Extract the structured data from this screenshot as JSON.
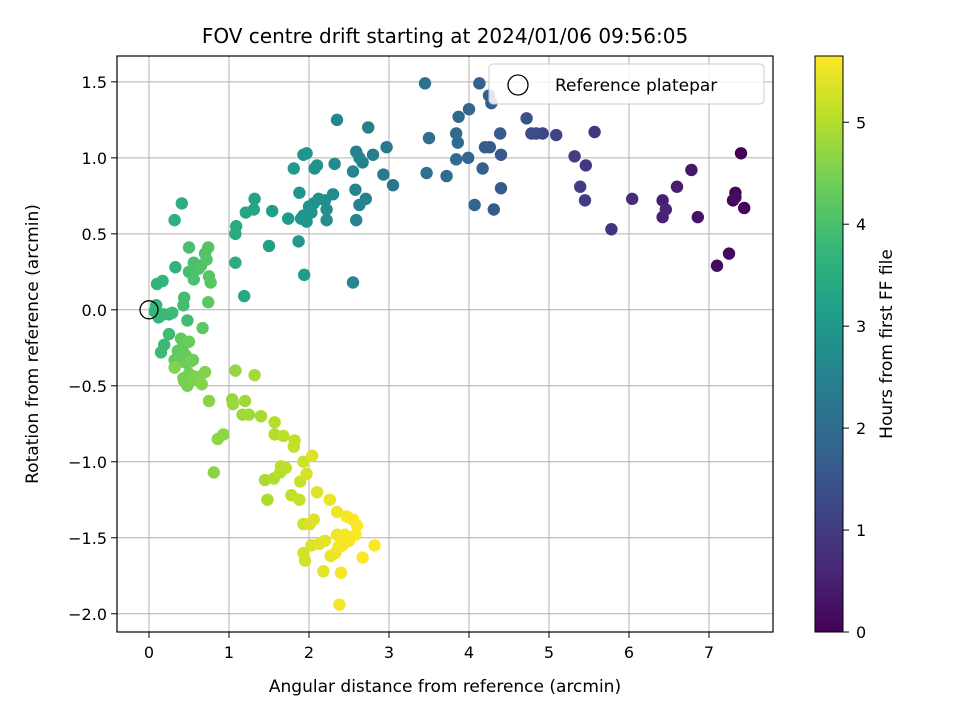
{
  "chart_data": {
    "type": "scatter",
    "title": "FOV centre drift starting at 2024/01/06 09:56:05",
    "xlabel": "Angular distance from reference (arcmin)",
    "ylabel": "Rotation from reference (arcmin)",
    "xlim": [
      -0.4,
      7.8
    ],
    "ylim": [
      -2.12,
      1.67
    ],
    "xticks": [
      "0",
      "1",
      "2",
      "3",
      "4",
      "5",
      "6",
      "7"
    ],
    "xtick_values": [
      0,
      1,
      2,
      3,
      4,
      5,
      6,
      7
    ],
    "yticks": [
      "1.5",
      "1.0",
      "0.5",
      "0.0",
      "−0.5",
      "−1.0",
      "−1.5",
      "−2.0"
    ],
    "ytick_values": [
      1.5,
      1.0,
      0.5,
      0.0,
      -0.5,
      -1.0,
      -1.5,
      -2.0
    ],
    "grid": true,
    "legend": {
      "placement": "top-right",
      "entries": [
        "Reference platepar"
      ]
    },
    "reference_point": {
      "x": 0,
      "y": 0
    },
    "colorbar": {
      "label": "Hours from first FF file",
      "range": [
        0,
        5.65
      ],
      "ticks": [
        "0",
        "1",
        "2",
        "3",
        "4",
        "5"
      ],
      "tick_values": [
        0,
        1,
        2,
        3,
        4,
        5
      ],
      "colormap": [
        "#440154",
        "#482878",
        "#3e4989",
        "#31688e",
        "#26828e",
        "#1f9e89",
        "#35b779",
        "#6ece58",
        "#b5de2b",
        "#fde725"
      ]
    },
    "points": [
      {
        "x": 7.4,
        "y": 1.03,
        "c": 0.02
      },
      {
        "x": 7.44,
        "y": 0.67,
        "c": 0.05
      },
      {
        "x": 7.33,
        "y": 0.77,
        "c": 0.08
      },
      {
        "x": 7.3,
        "y": 0.72,
        "c": 0.1
      },
      {
        "x": 7.25,
        "y": 0.37,
        "c": 0.13
      },
      {
        "x": 7.1,
        "y": 0.29,
        "c": 0.16
      },
      {
        "x": 7.33,
        "y": 0.74,
        "c": 0.2
      },
      {
        "x": 6.86,
        "y": 0.61,
        "c": 0.3
      },
      {
        "x": 6.78,
        "y": 0.92,
        "c": 0.35
      },
      {
        "x": 6.6,
        "y": 0.81,
        "c": 0.45
      },
      {
        "x": 6.42,
        "y": 0.72,
        "c": 0.5
      },
      {
        "x": 6.42,
        "y": 0.61,
        "c": 0.55
      },
      {
        "x": 6.46,
        "y": 0.66,
        "c": 0.58
      },
      {
        "x": 6.04,
        "y": 0.73,
        "c": 0.7
      },
      {
        "x": 5.78,
        "y": 0.53,
        "c": 0.85
      },
      {
        "x": 5.57,
        "y": 1.17,
        "c": 0.88
      },
      {
        "x": 5.46,
        "y": 0.95,
        "c": 0.95
      },
      {
        "x": 5.39,
        "y": 0.81,
        "c": 1.0
      },
      {
        "x": 5.45,
        "y": 0.72,
        "c": 1.02
      },
      {
        "x": 5.32,
        "y": 1.01,
        "c": 1.05
      },
      {
        "x": 5.09,
        "y": 1.15,
        "c": 1.15
      },
      {
        "x": 4.92,
        "y": 1.16,
        "c": 1.2
      },
      {
        "x": 4.84,
        "y": 1.16,
        "c": 1.25
      },
      {
        "x": 4.78,
        "y": 1.16,
        "c": 1.3
      },
      {
        "x": 4.72,
        "y": 1.26,
        "c": 1.4
      },
      {
        "x": 4.4,
        "y": 1.02,
        "c": 1.55
      },
      {
        "x": 4.4,
        "y": 0.8,
        "c": 1.6
      },
      {
        "x": 4.39,
        "y": 1.16,
        "c": 1.62
      },
      {
        "x": 4.31,
        "y": 0.66,
        "c": 1.65
      },
      {
        "x": 4.26,
        "y": 1.07,
        "c": 1.65
      },
      {
        "x": 4.2,
        "y": 1.07,
        "c": 1.68
      },
      {
        "x": 4.25,
        "y": 1.41,
        "c": 1.7
      },
      {
        "x": 4.28,
        "y": 1.36,
        "c": 1.72
      },
      {
        "x": 4.13,
        "y": 1.49,
        "c": 1.75
      },
      {
        "x": 4.17,
        "y": 0.93,
        "c": 1.75
      },
      {
        "x": 4.07,
        "y": 0.69,
        "c": 1.8
      },
      {
        "x": 4.0,
        "y": 1.32,
        "c": 1.85
      },
      {
        "x": 3.99,
        "y": 1.0,
        "c": 1.85
      },
      {
        "x": 3.87,
        "y": 1.27,
        "c": 1.9
      },
      {
        "x": 3.86,
        "y": 1.1,
        "c": 1.92
      },
      {
        "x": 3.84,
        "y": 1.16,
        "c": 1.95
      },
      {
        "x": 3.84,
        "y": 0.99,
        "c": 1.97
      },
      {
        "x": 3.72,
        "y": 0.88,
        "c": 2.0
      },
      {
        "x": 3.5,
        "y": 1.13,
        "c": 2.05
      },
      {
        "x": 3.47,
        "y": 0.9,
        "c": 2.1
      },
      {
        "x": 3.45,
        "y": 1.49,
        "c": 2.1
      },
      {
        "x": 3.05,
        "y": 0.82,
        "c": 2.2
      },
      {
        "x": 2.97,
        "y": 1.07,
        "c": 2.25
      },
      {
        "x": 2.93,
        "y": 0.89,
        "c": 2.3
      },
      {
        "x": 2.8,
        "y": 1.02,
        "c": 2.35
      },
      {
        "x": 2.74,
        "y": 1.2,
        "c": 2.4
      },
      {
        "x": 2.71,
        "y": 0.73,
        "c": 2.45
      },
      {
        "x": 2.67,
        "y": 0.97,
        "c": 2.45
      },
      {
        "x": 2.63,
        "y": 1.0,
        "c": 2.5
      },
      {
        "x": 2.63,
        "y": 0.69,
        "c": 2.5
      },
      {
        "x": 2.59,
        "y": 1.04,
        "c": 2.5
      },
      {
        "x": 2.58,
        "y": 0.79,
        "c": 2.55
      },
      {
        "x": 2.59,
        "y": 0.59,
        "c": 2.55
      },
      {
        "x": 2.55,
        "y": 0.91,
        "c": 2.6
      },
      {
        "x": 2.55,
        "y": 0.18,
        "c": 2.6
      },
      {
        "x": 2.35,
        "y": 1.25,
        "c": 2.65
      },
      {
        "x": 2.32,
        "y": 0.96,
        "c": 2.7
      },
      {
        "x": 2.3,
        "y": 0.76,
        "c": 2.7
      },
      {
        "x": 2.22,
        "y": 0.59,
        "c": 2.75
      },
      {
        "x": 2.22,
        "y": 0.66,
        "c": 2.78
      },
      {
        "x": 2.2,
        "y": 0.72,
        "c": 2.8
      },
      {
        "x": 2.12,
        "y": 0.73,
        "c": 2.82
      },
      {
        "x": 2.07,
        "y": 0.93,
        "c": 2.85
      },
      {
        "x": 2.1,
        "y": 0.95,
        "c": 2.87
      },
      {
        "x": 2.06,
        "y": 0.7,
        "c": 2.88
      },
      {
        "x": 2.03,
        "y": 0.64,
        "c": 2.9
      },
      {
        "x": 2.0,
        "y": 0.68,
        "c": 2.9
      },
      {
        "x": 1.93,
        "y": 1.02,
        "c": 2.92
      },
      {
        "x": 1.97,
        "y": 1.03,
        "c": 2.92
      },
      {
        "x": 1.97,
        "y": 0.58,
        "c": 2.95
      },
      {
        "x": 1.93,
        "y": 0.62,
        "c": 2.95
      },
      {
        "x": 1.88,
        "y": 0.77,
        "c": 2.97
      },
      {
        "x": 1.9,
        "y": 0.6,
        "c": 3.0
      },
      {
        "x": 1.87,
        "y": 0.45,
        "c": 3.0
      },
      {
        "x": 1.94,
        "y": 0.23,
        "c": 3.05
      },
      {
        "x": 1.81,
        "y": 0.93,
        "c": 3.05
      },
      {
        "x": 1.74,
        "y": 0.6,
        "c": 3.1
      },
      {
        "x": 1.54,
        "y": 0.65,
        "c": 3.15
      },
      {
        "x": 1.5,
        "y": 0.42,
        "c": 3.2
      },
      {
        "x": 1.32,
        "y": 0.73,
        "c": 3.3
      },
      {
        "x": 1.31,
        "y": 0.66,
        "c": 3.32
      },
      {
        "x": 1.21,
        "y": 0.64,
        "c": 3.35
      },
      {
        "x": 1.19,
        "y": 0.09,
        "c": 3.4
      },
      {
        "x": 1.09,
        "y": 0.55,
        "c": 3.45
      },
      {
        "x": 1.08,
        "y": 0.5,
        "c": 3.45
      },
      {
        "x": 1.08,
        "y": 0.31,
        "c": 3.5
      },
      {
        "x": 0.41,
        "y": 0.7,
        "c": 3.55
      },
      {
        "x": 0.32,
        "y": 0.59,
        "c": 3.6
      },
      {
        "x": 0.33,
        "y": 0.28,
        "c": 3.65
      },
      {
        "x": 0.17,
        "y": 0.19,
        "c": 3.7
      },
      {
        "x": 0.1,
        "y": 0.17,
        "c": 3.7
      },
      {
        "x": 0.09,
        "y": 0.03,
        "c": 3.72
      },
      {
        "x": 0.07,
        "y": -0.01,
        "c": 3.74
      },
      {
        "x": 0.12,
        "y": -0.05,
        "c": 3.76
      },
      {
        "x": 0.25,
        "y": -0.03,
        "c": 3.78
      },
      {
        "x": 0.18,
        "y": -0.03,
        "c": 3.8
      },
      {
        "x": 0.15,
        "y": -0.28,
        "c": 3.82
      },
      {
        "x": 0.19,
        "y": -0.23,
        "c": 3.84
      },
      {
        "x": 0.29,
        "y": -0.02,
        "c": 3.86
      },
      {
        "x": 0.25,
        "y": -0.16,
        "c": 3.88
      },
      {
        "x": 0.48,
        "y": -0.07,
        "c": 3.9
      },
      {
        "x": 0.43,
        "y": 0.03,
        "c": 3.92
      },
      {
        "x": 0.44,
        "y": 0.08,
        "c": 3.94
      },
      {
        "x": 0.5,
        "y": 0.25,
        "c": 3.96
      },
      {
        "x": 0.5,
        "y": 0.41,
        "c": 3.98
      },
      {
        "x": 0.56,
        "y": 0.31,
        "c": 4.0
      },
      {
        "x": 0.56,
        "y": 0.2,
        "c": 4.02
      },
      {
        "x": 0.62,
        "y": 0.27,
        "c": 4.04
      },
      {
        "x": 0.65,
        "y": 0.29,
        "c": 4.06
      },
      {
        "x": 0.7,
        "y": 0.37,
        "c": 4.08
      },
      {
        "x": 0.74,
        "y": 0.41,
        "c": 4.1
      },
      {
        "x": 0.72,
        "y": 0.33,
        "c": 4.12
      },
      {
        "x": 0.75,
        "y": 0.22,
        "c": 4.14
      },
      {
        "x": 0.77,
        "y": 0.18,
        "c": 4.16
      },
      {
        "x": 0.74,
        "y": 0.05,
        "c": 4.18
      },
      {
        "x": 0.67,
        "y": -0.12,
        "c": 4.2
      },
      {
        "x": 0.4,
        "y": -0.19,
        "c": 4.22
      },
      {
        "x": 0.42,
        "y": -0.25,
        "c": 4.24
      },
      {
        "x": 0.36,
        "y": -0.27,
        "c": 4.26
      },
      {
        "x": 0.32,
        "y": -0.33,
        "c": 4.28
      },
      {
        "x": 0.4,
        "y": -0.34,
        "c": 4.3
      },
      {
        "x": 0.46,
        "y": -0.3,
        "c": 4.32
      },
      {
        "x": 0.5,
        "y": -0.21,
        "c": 4.34
      },
      {
        "x": 0.47,
        "y": -0.35,
        "c": 4.36
      },
      {
        "x": 0.52,
        "y": -0.34,
        "c": 4.38
      },
      {
        "x": 0.55,
        "y": -0.33,
        "c": 4.4
      },
      {
        "x": 0.5,
        "y": -0.42,
        "c": 4.42
      },
      {
        "x": 0.43,
        "y": -0.45,
        "c": 4.44
      },
      {
        "x": 0.48,
        "y": -0.5,
        "c": 4.46
      },
      {
        "x": 0.44,
        "y": -0.47,
        "c": 4.48
      },
      {
        "x": 0.57,
        "y": -0.44,
        "c": 4.5
      },
      {
        "x": 0.55,
        "y": -0.46,
        "c": 4.52
      },
      {
        "x": 0.63,
        "y": -0.44,
        "c": 4.54
      },
      {
        "x": 0.7,
        "y": -0.41,
        "c": 4.56
      },
      {
        "x": 0.32,
        "y": -0.38,
        "c": 4.58
      },
      {
        "x": 0.66,
        "y": -0.49,
        "c": 4.6
      },
      {
        "x": 0.75,
        "y": -0.6,
        "c": 4.62
      },
      {
        "x": 0.81,
        "y": -1.07,
        "c": 4.64
      },
      {
        "x": 0.86,
        "y": -0.85,
        "c": 4.66
      },
      {
        "x": 0.93,
        "y": -0.82,
        "c": 4.68
      },
      {
        "x": 1.08,
        "y": -0.4,
        "c": 4.72
      },
      {
        "x": 1.04,
        "y": -0.59,
        "c": 4.75
      },
      {
        "x": 1.05,
        "y": -0.62,
        "c": 4.78
      },
      {
        "x": 1.17,
        "y": -0.69,
        "c": 4.8
      },
      {
        "x": 1.2,
        "y": -0.6,
        "c": 4.82
      },
      {
        "x": 1.25,
        "y": -0.69,
        "c": 4.85
      },
      {
        "x": 1.32,
        "y": -0.43,
        "c": 4.88
      },
      {
        "x": 1.4,
        "y": -0.7,
        "c": 4.9
      },
      {
        "x": 1.45,
        "y": -1.12,
        "c": 4.92
      },
      {
        "x": 1.48,
        "y": -1.25,
        "c": 4.95
      },
      {
        "x": 1.56,
        "y": -1.11,
        "c": 4.97
      },
      {
        "x": 1.57,
        "y": -0.82,
        "c": 5.0
      },
      {
        "x": 1.57,
        "y": -0.74,
        "c": 5.02
      },
      {
        "x": 1.64,
        "y": -1.07,
        "c": 5.04
      },
      {
        "x": 1.65,
        "y": -1.03,
        "c": 5.06
      },
      {
        "x": 1.68,
        "y": -0.83,
        "c": 5.08
      },
      {
        "x": 1.71,
        "y": -1.04,
        "c": 5.1
      },
      {
        "x": 1.78,
        "y": -1.22,
        "c": 5.12
      },
      {
        "x": 1.81,
        "y": -0.9,
        "c": 5.14
      },
      {
        "x": 1.82,
        "y": -0.86,
        "c": 5.16
      },
      {
        "x": 1.88,
        "y": -1.25,
        "c": 5.18
      },
      {
        "x": 1.89,
        "y": -1.13,
        "c": 5.2
      },
      {
        "x": 1.93,
        "y": -1.0,
        "c": 5.22
      },
      {
        "x": 1.93,
        "y": -1.41,
        "c": 5.24
      },
      {
        "x": 1.93,
        "y": -1.6,
        "c": 5.26
      },
      {
        "x": 1.95,
        "y": -1.65,
        "c": 5.28
      },
      {
        "x": 1.97,
        "y": -1.08,
        "c": 5.3
      },
      {
        "x": 2.01,
        "y": -1.41,
        "c": 5.32
      },
      {
        "x": 2.03,
        "y": -1.55,
        "c": 5.34
      },
      {
        "x": 2.04,
        "y": -0.96,
        "c": 5.36
      },
      {
        "x": 2.06,
        "y": -1.38,
        "c": 5.38
      },
      {
        "x": 2.1,
        "y": -1.2,
        "c": 5.4
      },
      {
        "x": 2.13,
        "y": -1.54,
        "c": 5.42
      },
      {
        "x": 2.18,
        "y": -1.72,
        "c": 5.44
      },
      {
        "x": 2.2,
        "y": -1.52,
        "c": 5.46
      },
      {
        "x": 2.26,
        "y": -1.25,
        "c": 5.48
      },
      {
        "x": 2.27,
        "y": -1.62,
        "c": 5.5
      },
      {
        "x": 2.33,
        "y": -1.6,
        "c": 5.5
      },
      {
        "x": 2.35,
        "y": -1.33,
        "c": 5.52
      },
      {
        "x": 2.35,
        "y": -1.48,
        "c": 5.53
      },
      {
        "x": 2.39,
        "y": -1.5,
        "c": 5.54
      },
      {
        "x": 2.38,
        "y": -1.94,
        "c": 5.55
      },
      {
        "x": 2.4,
        "y": -1.73,
        "c": 5.56
      },
      {
        "x": 2.42,
        "y": -1.55,
        "c": 5.57
      },
      {
        "x": 2.45,
        "y": -1.48,
        "c": 5.58
      },
      {
        "x": 2.47,
        "y": -1.36,
        "c": 5.59
      },
      {
        "x": 2.5,
        "y": -1.52,
        "c": 5.6
      },
      {
        "x": 2.55,
        "y": -1.38,
        "c": 5.61
      },
      {
        "x": 2.58,
        "y": -1.48,
        "c": 5.62
      },
      {
        "x": 2.6,
        "y": -1.42,
        "c": 5.63
      },
      {
        "x": 2.67,
        "y": -1.63,
        "c": 5.64
      },
      {
        "x": 2.82,
        "y": -1.55,
        "c": 5.65
      },
      {
        "x": 2.48,
        "y": -1.5,
        "c": 5.6
      },
      {
        "x": 2.37,
        "y": -1.56,
        "c": 5.58
      }
    ]
  }
}
